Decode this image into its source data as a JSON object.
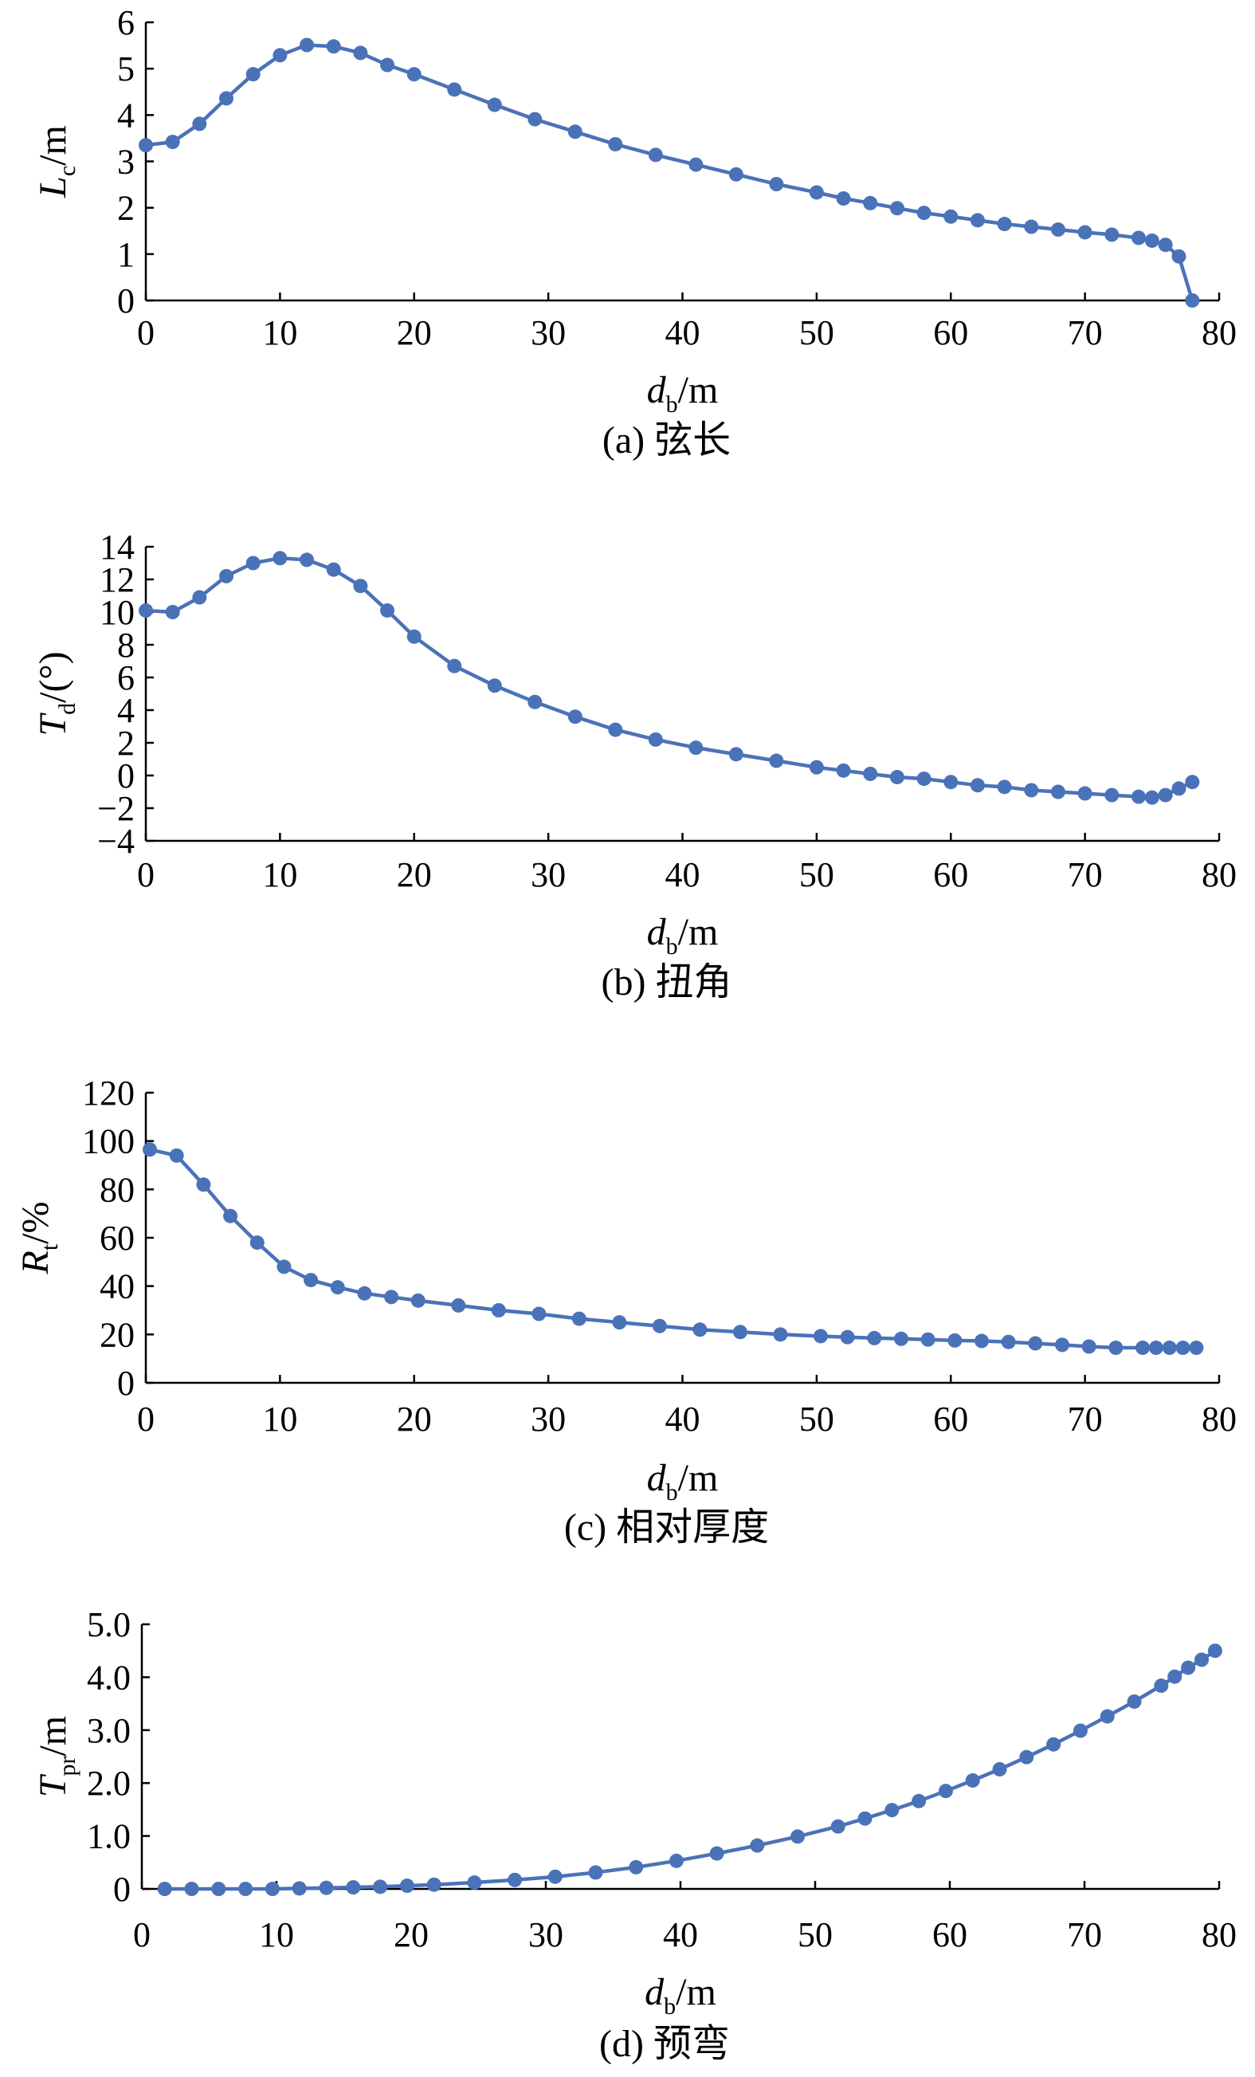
{
  "chart_data": [
    {
      "type": "line",
      "ylabel": "L",
      "ylabel_sub": "c",
      "ylabel_unit": "/m",
      "xlabel": "d",
      "xlabel_sub": "b",
      "xlabel_unit": "/m",
      "caption": "(a) 弦长",
      "xlim": [
        0,
        80
      ],
      "ylim": [
        0,
        6
      ],
      "xticks": [
        "0",
        "10",
        "20",
        "30",
        "40",
        "50",
        "60",
        "70",
        "80"
      ],
      "yticks": [
        "0",
        "1",
        "2",
        "3",
        "4",
        "5",
        "6"
      ],
      "x": [
        0,
        2,
        4,
        6,
        8,
        10,
        12,
        14,
        16,
        18,
        20,
        23,
        26,
        29,
        32,
        35,
        38,
        41,
        44,
        47,
        50,
        52,
        54,
        56,
        58,
        60,
        62,
        64,
        66,
        68,
        70,
        72,
        74,
        75,
        76,
        77,
        78
      ],
      "y": [
        3.35,
        3.42,
        3.81,
        4.36,
        4.88,
        5.29,
        5.51,
        5.48,
        5.34,
        5.08,
        4.88,
        4.55,
        4.22,
        3.91,
        3.64,
        3.37,
        3.14,
        2.93,
        2.72,
        2.51,
        2.33,
        2.2,
        2.1,
        1.99,
        1.89,
        1.81,
        1.73,
        1.65,
        1.59,
        1.53,
        1.47,
        1.42,
        1.35,
        1.29,
        1.2,
        0.95,
        0
      ]
    },
    {
      "type": "line",
      "ylabel": "T",
      "ylabel_sub": "d",
      "ylabel_unit": "/(°)",
      "xlabel": "d",
      "xlabel_sub": "b",
      "xlabel_unit": "/m",
      "caption": "(b) 扭角",
      "xlim": [
        0,
        80
      ],
      "ylim": [
        -4,
        14
      ],
      "xticks": [
        "0",
        "10",
        "20",
        "30",
        "40",
        "50",
        "60",
        "70",
        "80"
      ],
      "yticks": [
        "−4",
        "−2",
        "0",
        "2",
        "4",
        "6",
        "8",
        "10",
        "12",
        "14"
      ],
      "x": [
        0,
        2,
        4,
        6,
        8,
        10,
        12,
        14,
        16,
        18,
        20,
        23,
        26,
        29,
        32,
        35,
        38,
        41,
        44,
        47,
        50,
        52,
        54,
        56,
        58,
        60,
        62,
        64,
        66,
        68,
        70,
        72,
        74,
        75,
        76,
        77,
        78
      ],
      "y": [
        10.1,
        10.0,
        10.9,
        12.2,
        13.0,
        13.3,
        13.2,
        12.6,
        11.6,
        10.1,
        8.5,
        6.7,
        5.5,
        4.5,
        3.6,
        2.8,
        2.2,
        1.7,
        1.3,
        0.9,
        0.5,
        0.3,
        0.1,
        -0.1,
        -0.2,
        -0.4,
        -0.6,
        -0.7,
        -0.9,
        -1.0,
        -1.1,
        -1.2,
        -1.3,
        -1.35,
        -1.2,
        -0.8,
        -0.4
      ]
    },
    {
      "type": "line",
      "ylabel": "R",
      "ylabel_sub": "t",
      "ylabel_unit": "/%",
      "xlabel": "d",
      "xlabel_sub": "b",
      "xlabel_unit": "/m",
      "caption": "(c) 相对厚度",
      "xlim": [
        0,
        80
      ],
      "ylim": [
        0,
        120
      ],
      "xticks": [
        "0",
        "10",
        "20",
        "30",
        "40",
        "50",
        "60",
        "70",
        "80"
      ],
      "yticks": [
        "0",
        "20",
        "40",
        "60",
        "80",
        "100",
        "120"
      ],
      "x": [
        0.3,
        2.3,
        4.3,
        6.3,
        8.3,
        10.3,
        12.3,
        14.3,
        16.3,
        18.3,
        20.3,
        23.3,
        26.3,
        29.3,
        32.3,
        35.3,
        38.3,
        41.3,
        44.3,
        47.3,
        50.3,
        52.3,
        54.3,
        56.3,
        58.3,
        60.3,
        62.3,
        64.3,
        66.3,
        68.3,
        70.3,
        72.3,
        74.3,
        75.3,
        76.3,
        77.3,
        78.3
      ],
      "y": [
        96.5,
        94,
        82,
        69,
        58,
        48,
        42.5,
        39.5,
        37,
        35.5,
        34,
        32,
        30,
        28.5,
        26.5,
        25,
        23.5,
        22,
        21,
        20,
        19.3,
        18.9,
        18.5,
        18.2,
        17.9,
        17.5,
        17.3,
        16.9,
        16.3,
        15.7,
        15,
        14.5,
        14.5,
        14.5,
        14.5,
        14.5,
        14.5
      ]
    },
    {
      "type": "line",
      "ylabel": "T",
      "ylabel_sub": "pr",
      "ylabel_unit": "/m",
      "xlabel": "d",
      "xlabel_sub": "b",
      "xlabel_unit": "/m",
      "caption": "(d) 预弯",
      "xlim": [
        0,
        80
      ],
      "ylim": [
        0,
        5
      ],
      "xticks": [
        "0",
        "10",
        "20",
        "30",
        "40",
        "50",
        "60",
        "70",
        "80"
      ],
      "yticks": [
        "0",
        "1.0",
        "2.0",
        "3.0",
        "4.0",
        "5.0"
      ],
      "x": [
        1.7,
        3.7,
        5.7,
        7.7,
        9.7,
        11.7,
        13.7,
        15.7,
        17.7,
        19.7,
        21.7,
        24.7,
        27.7,
        30.7,
        33.7,
        36.7,
        39.7,
        42.7,
        45.7,
        48.7,
        51.7,
        53.7,
        55.7,
        57.7,
        59.7,
        61.7,
        63.7,
        65.7,
        67.7,
        69.7,
        71.7,
        73.7,
        75.7,
        76.7,
        77.7,
        78.7,
        79.7
      ],
      "y": [
        0,
        0,
        0,
        0,
        0,
        0.01,
        0.02,
        0.03,
        0.04,
        0.06,
        0.08,
        0.12,
        0.17,
        0.23,
        0.31,
        0.41,
        0.53,
        0.67,
        0.82,
        0.99,
        1.18,
        1.33,
        1.49,
        1.66,
        1.85,
        2.05,
        2.26,
        2.49,
        2.73,
        2.99,
        3.26,
        3.54,
        3.84,
        4.01,
        4.18,
        4.33,
        4.5
      ]
    }
  ]
}
